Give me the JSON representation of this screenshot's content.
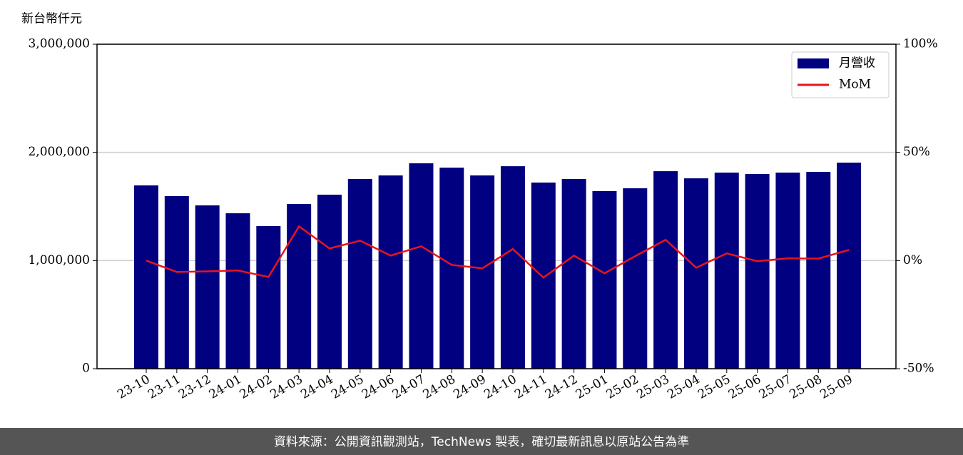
{
  "chart_data": {
    "type": "bar_line",
    "y_label": "新台幣仟元",
    "categories": [
      "23-10",
      "23-11",
      "23-12",
      "24-01",
      "24-02",
      "24-03",
      "24-04",
      "24-05",
      "24-06",
      "24-07",
      "24-08",
      "24-09",
      "24-10",
      "24-11",
      "24-12",
      "25-01",
      "25-02",
      "25-03",
      "25-04",
      "25-05",
      "25-06",
      "25-07",
      "25-08",
      "25-09"
    ],
    "series": [
      {
        "name": "月營收",
        "type": "bar",
        "color": "#000080",
        "values": [
          1695000,
          1596000,
          1510000,
          1437000,
          1319000,
          1523000,
          1609000,
          1754000,
          1787000,
          1899000,
          1859000,
          1787000,
          1872000,
          1721000,
          1754000,
          1642000,
          1668000,
          1826000,
          1760000,
          1813000,
          1800000,
          1813000,
          1820000,
          1905000
        ]
      },
      {
        "name": "MoM",
        "type": "line",
        "axis": "y2",
        "color": "#e8141c",
        "values": [
          0,
          -5.3,
          -5,
          -4.6,
          -7.6,
          15.8,
          5.6,
          9.2,
          2.3,
          6.6,
          -2,
          -3.6,
          5.3,
          -7.9,
          2.3,
          -5.9,
          2,
          9.6,
          -3.3,
          3.3,
          -0.3,
          1,
          0.9,
          4.9
        ]
      }
    ],
    "ylim": [
      0,
      3000000
    ],
    "yticks": [
      0,
      {
        "value": 1000000,
        "label": "1,000,000"
      },
      {
        "value": 2000000,
        "label": "2,000,000"
      },
      {
        "value": 3000000,
        "label": "3,000,000"
      }
    ],
    "y2lim": [
      -50,
      100
    ],
    "y2ticks": [
      {
        "value": -50,
        "label": "-50%"
      },
      {
        "value": 0,
        "label": "0%"
      },
      {
        "value": 50,
        "label": "50%"
      },
      {
        "value": 100,
        "label": "100%"
      }
    ],
    "grid": true,
    "legend": "upper right",
    "footer": "資料來源：公開資訊觀測站，TechNews 製表，確切最新訊息以原站公告為準"
  }
}
